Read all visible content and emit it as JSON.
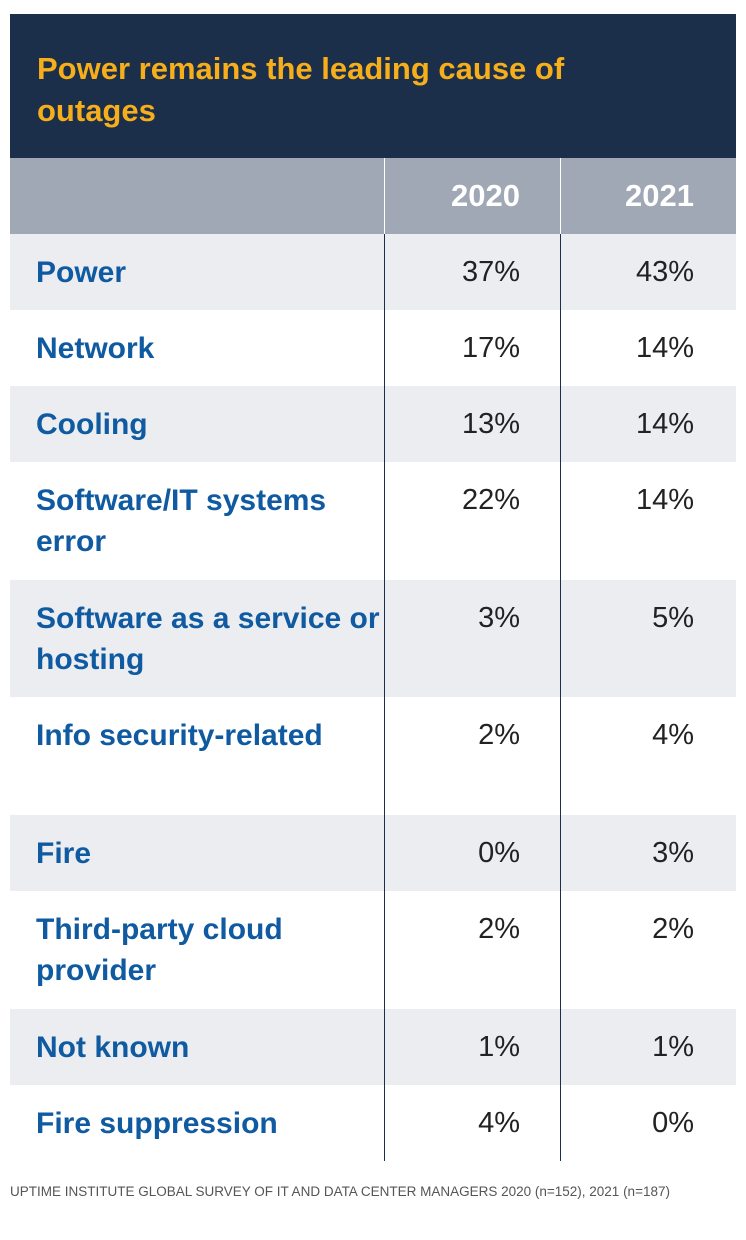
{
  "chart_data": {
    "type": "table",
    "title": "Power remains the leading cause of outages",
    "columns": [
      "",
      "2020",
      "2021"
    ],
    "rows": [
      {
        "category": "Power",
        "values": [
          "37%",
          "43%"
        ]
      },
      {
        "category": "Network",
        "values": [
          "17%",
          "14%"
        ]
      },
      {
        "category": "Cooling",
        "values": [
          "13%",
          "14%"
        ]
      },
      {
        "category": "Software/IT systems error",
        "values": [
          "22%",
          "14%"
        ]
      },
      {
        "category": "Software as a service or hosting",
        "values": [
          "3%",
          "5%"
        ]
      },
      {
        "category": "Info security-related",
        "values": [
          "2%",
          "4%"
        ]
      },
      {
        "category": "Fire",
        "values": [
          "0%",
          "3%"
        ]
      },
      {
        "category": "Third-party cloud provider",
        "values": [
          "2%",
          "2%"
        ]
      },
      {
        "category": "Not known",
        "values": [
          "1%",
          "1%"
        ]
      },
      {
        "category": "Fire suppression",
        "values": [
          "4%",
          "0%"
        ]
      }
    ],
    "source": "UPTIME INSTITUTE GLOBAL SURVEY OF IT AND DATA CENTER MANAGERS 2020 (n=152), 2021 (n=187)"
  },
  "colors": {
    "title_background": "#1b2f4a",
    "title_text": "#f7ae1b",
    "header_background": "#a0a7b5",
    "category_text": "#0f5aa0",
    "alternate_row": "#ebedf1"
  }
}
